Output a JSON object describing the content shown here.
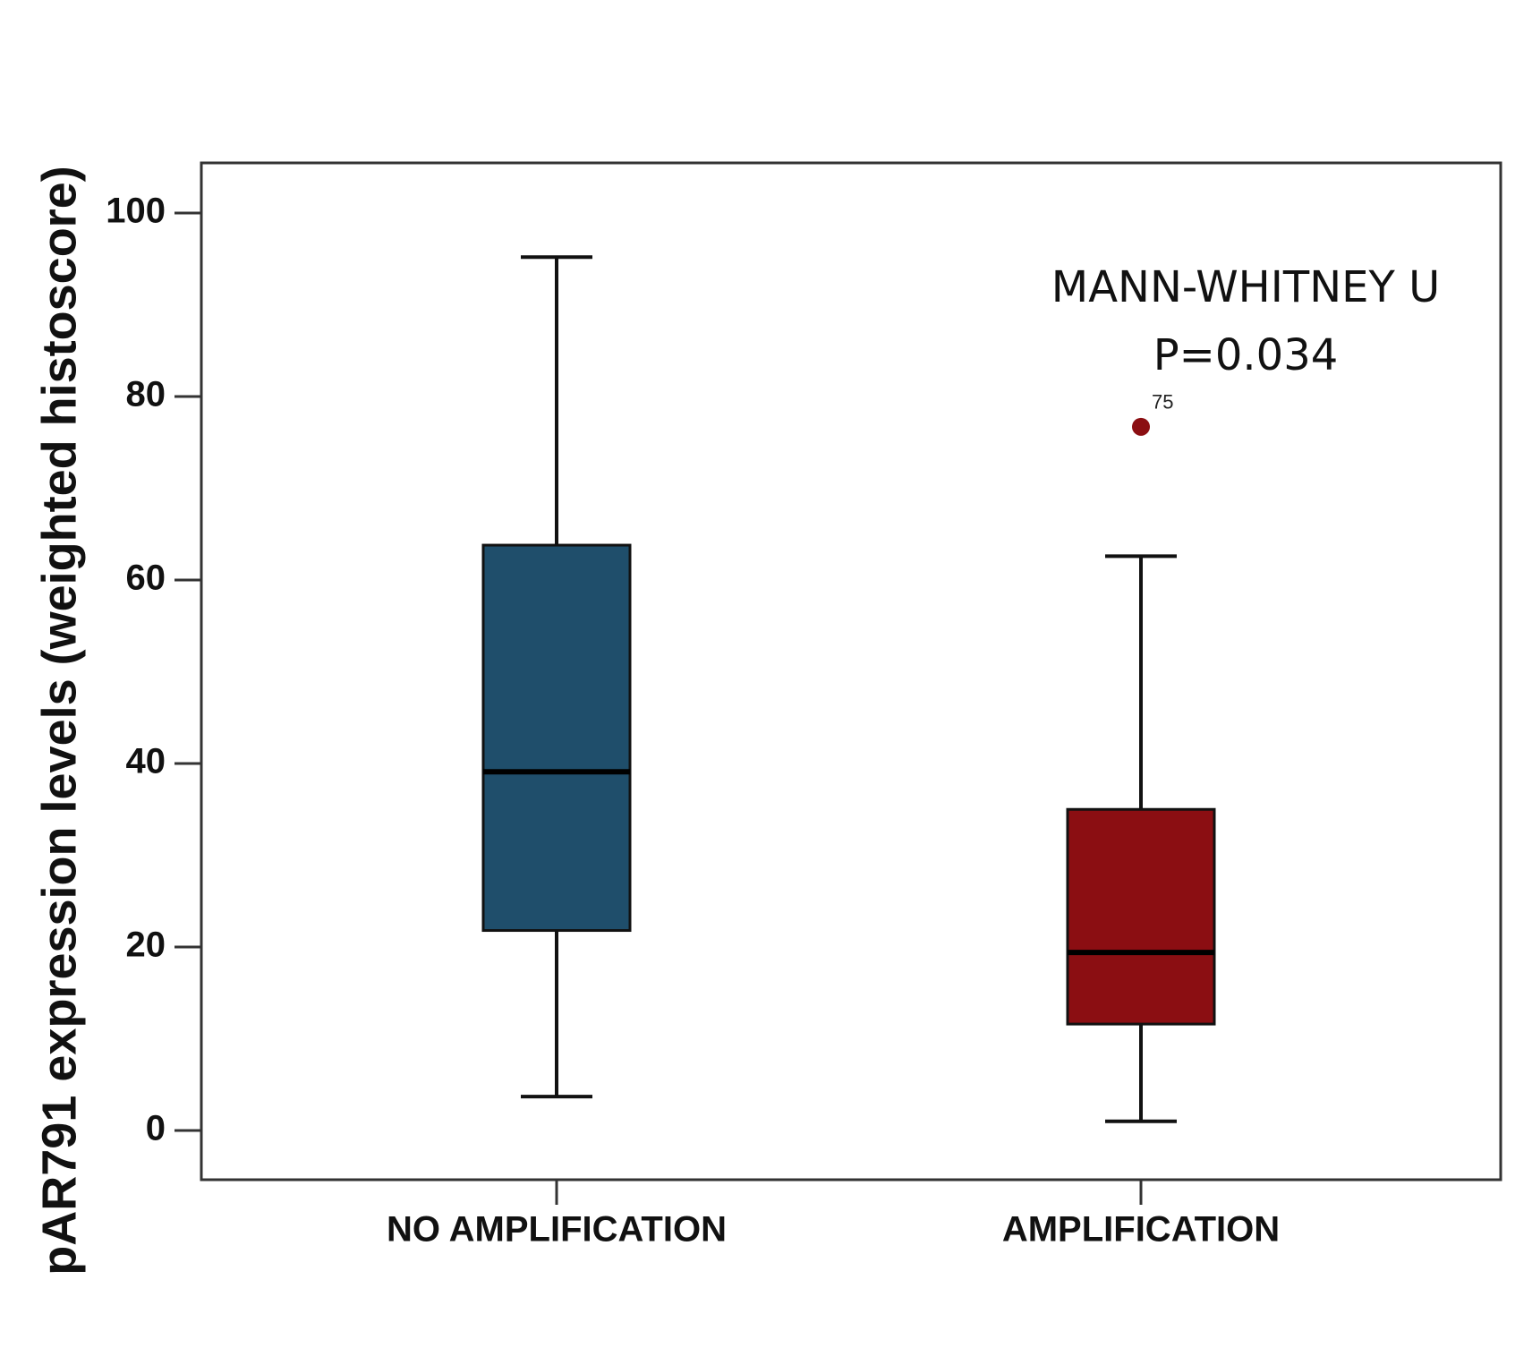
{
  "chart_data": {
    "type": "boxplot",
    "ylabel": "pAR791 expression levels (weighted histoscore)",
    "xlabel": "",
    "ylim": [
      -5,
      105
    ],
    "yticks": [
      0,
      20,
      40,
      60,
      80,
      100
    ],
    "ytick_labels": [
      "0",
      "20",
      "40",
      "60",
      "80",
      "100"
    ],
    "grid": false,
    "categories": [
      "NO AMPLIFICATION",
      "AMPLIFICATION"
    ],
    "boxes": [
      {
        "category": "NO AMPLIFICATION",
        "whisker_low": 3.7,
        "q1": 21.8,
        "median": 39.1,
        "q3": 63.8,
        "whisker_high": 95.2,
        "color": "#1f4e6b",
        "outliers": []
      },
      {
        "category": "AMPLIFICATION",
        "whisker_low": 1.0,
        "q1": 11.6,
        "median": 19.4,
        "q3": 35.0,
        "whisker_high": 62.6,
        "color": "#8b0e12",
        "outliers": [
          {
            "value": 76.7,
            "label": "75"
          }
        ]
      }
    ],
    "annotations": [
      {
        "text": "MANN-WHITNEY U"
      },
      {
        "text": "P=0.034"
      }
    ]
  }
}
